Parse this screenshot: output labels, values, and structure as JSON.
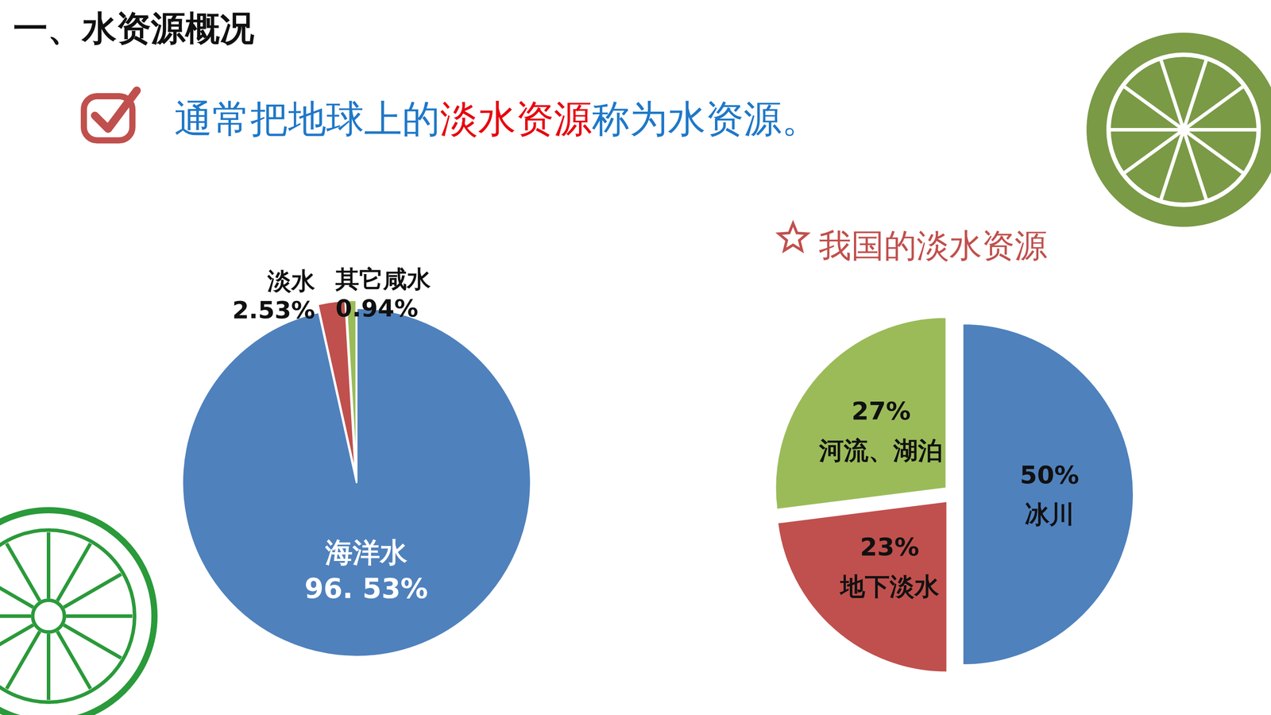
{
  "heading": "一、水资源概况",
  "statement": [
    {
      "text": "通常把地球上的",
      "color": "#1f78c8"
    },
    {
      "text": "淡水资源",
      "color": "#e8000e"
    },
    {
      "text": "称为水资源。",
      "color": "#1f78c8"
    }
  ],
  "chart_data": [
    {
      "type": "pie",
      "categories": [
        "海洋水",
        "淡水",
        "其它咸水"
      ],
      "values": [
        96.53,
        2.53,
        0.94
      ],
      "value_labels": [
        "96. 53%",
        "2.53%",
        "0.94%"
      ],
      "colors": [
        "#4f81bd",
        "#c0504d",
        "#9bbb59"
      ],
      "data_labels": true
    },
    {
      "type": "pie",
      "title": "我国的淡水资源",
      "categories": [
        "冰川",
        "地下淡水",
        "河流、湖泊"
      ],
      "values": [
        50,
        23,
        27
      ],
      "value_labels": [
        "50%",
        "23%",
        "27%"
      ],
      "colors": [
        "#4f81bd",
        "#c0504d",
        "#9bbb59"
      ],
      "data_labels": true
    }
  ]
}
